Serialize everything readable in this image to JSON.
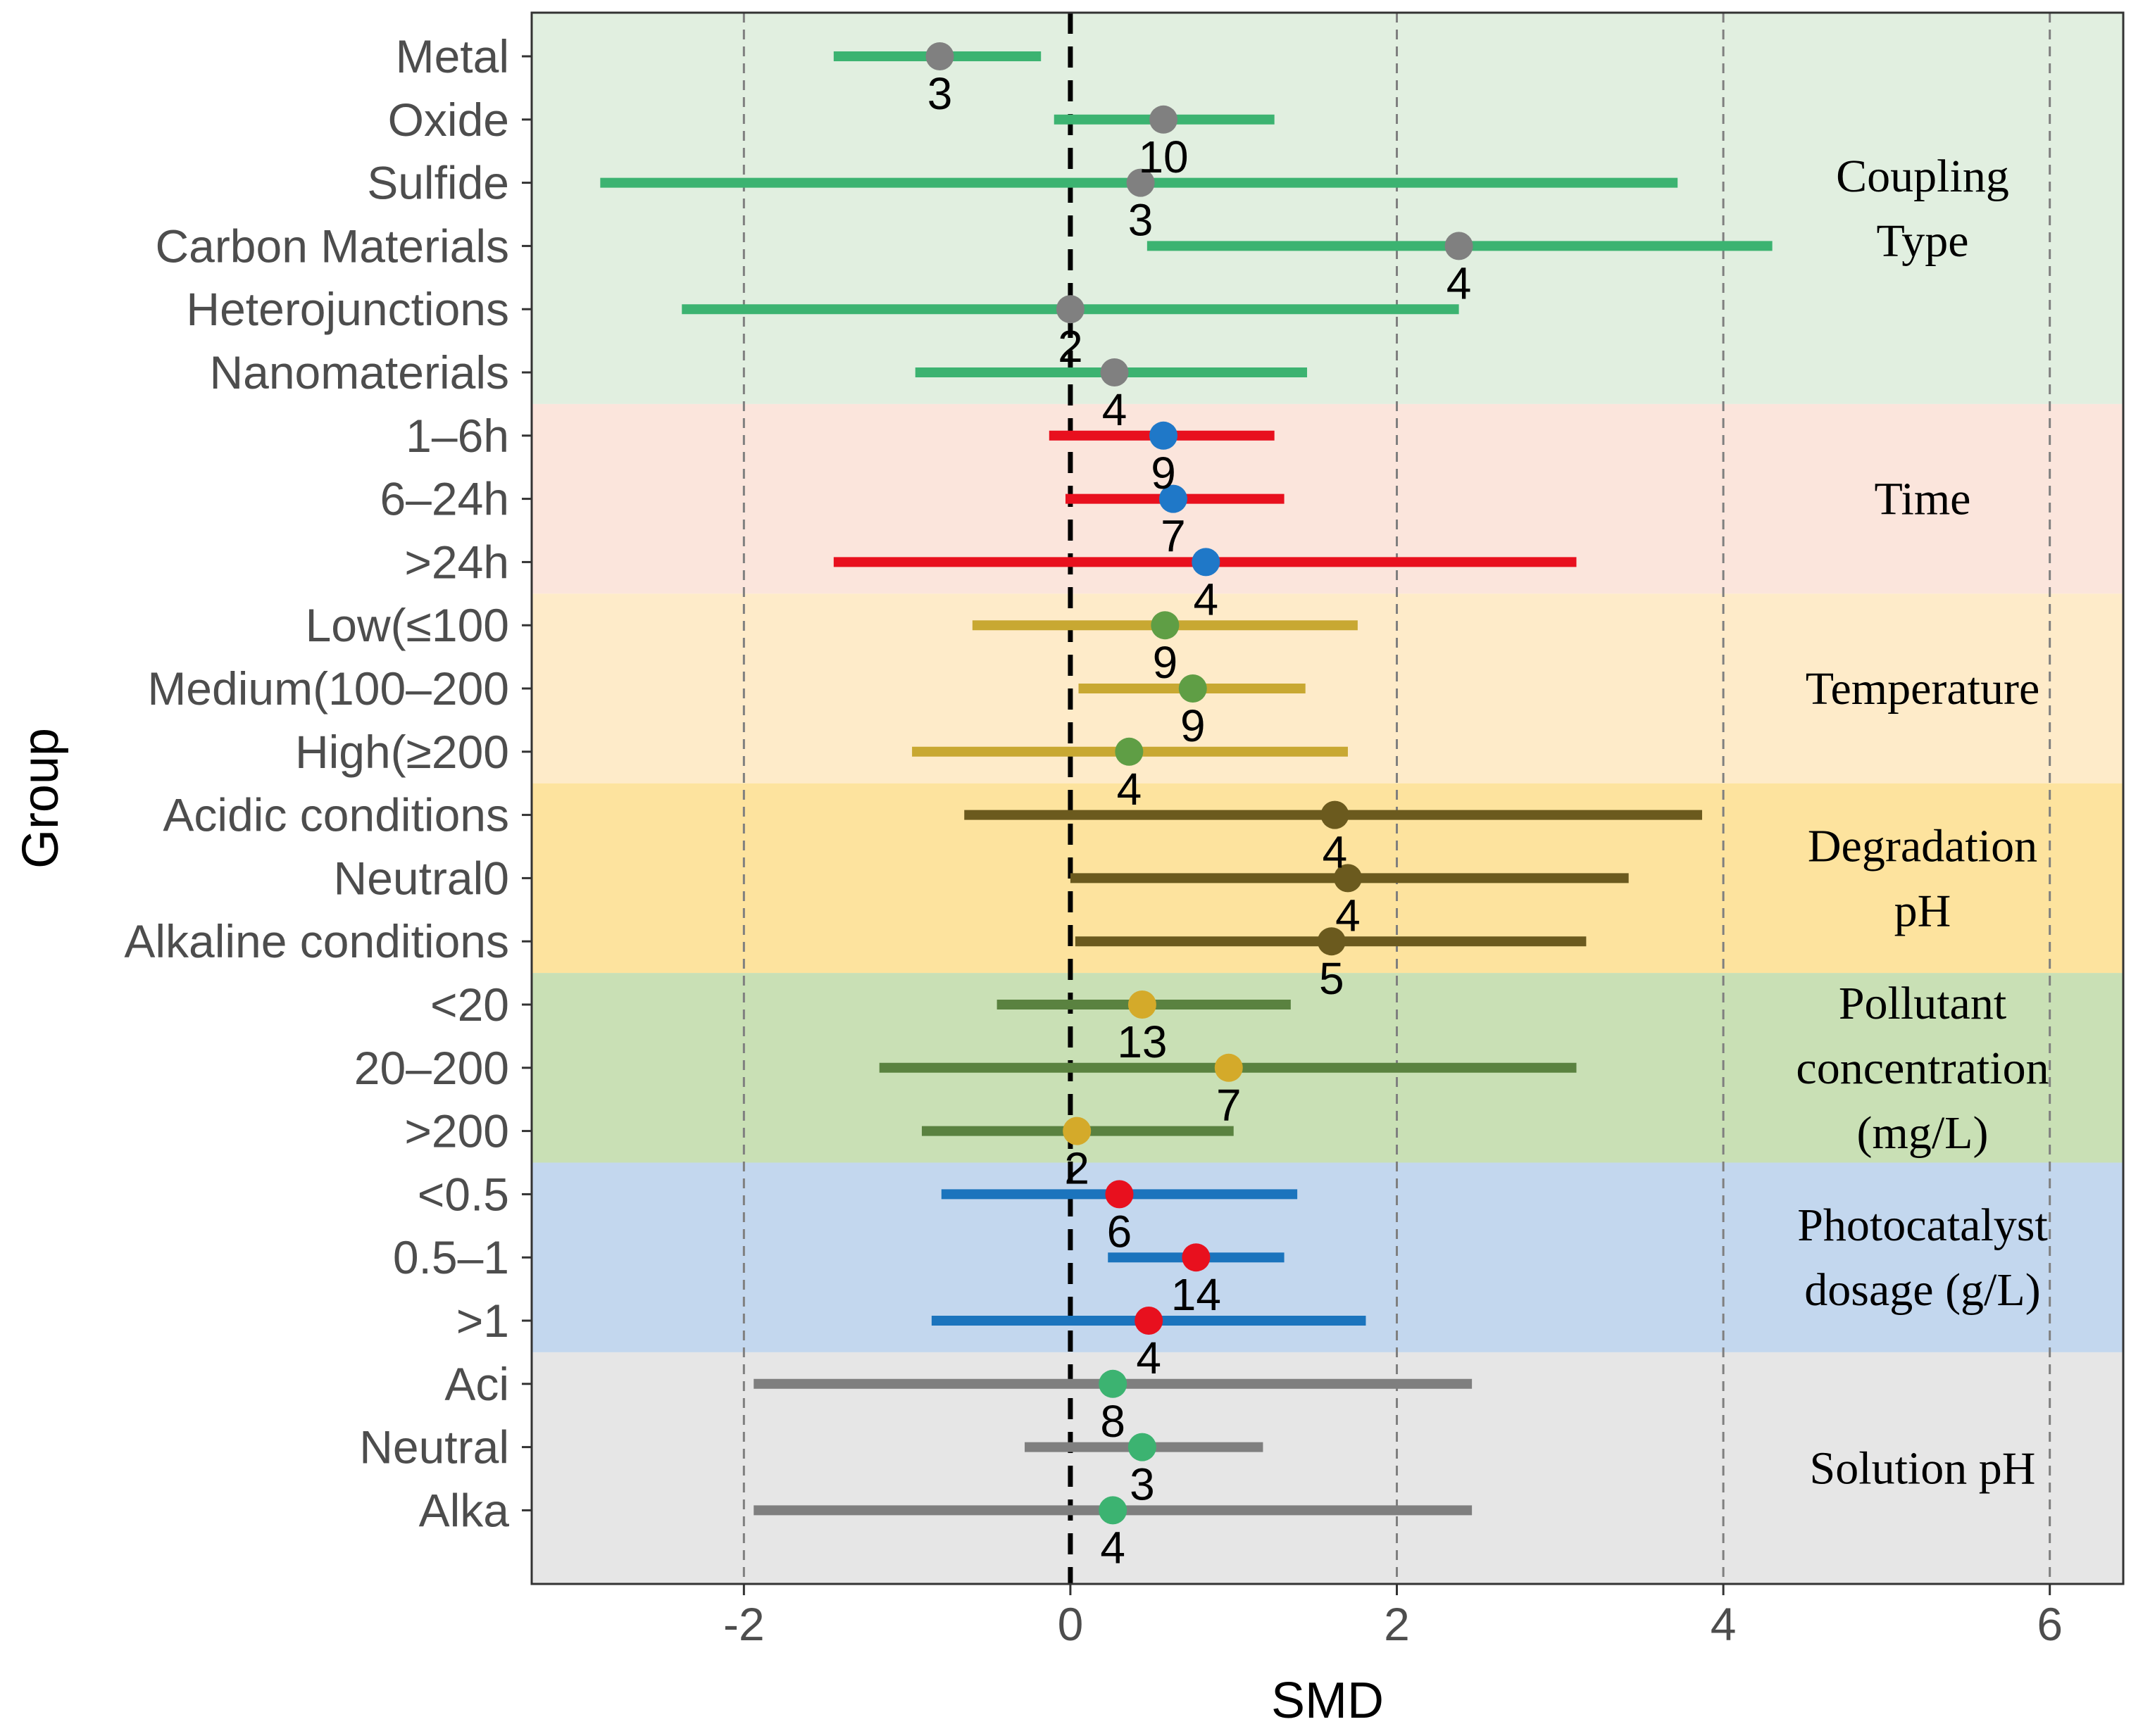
{
  "chart_data": {
    "type": "forest",
    "xlabel": "SMD",
    "ylabel": "Group",
    "xlim": [
      -3.3,
      6.45
    ],
    "x_ticks": [
      -2,
      0,
      2,
      4,
      6
    ],
    "x_tick_labels": [
      "-2",
      "0",
      "2",
      "4",
      "6"
    ],
    "reference_line": 0,
    "grid": "dashed vertical",
    "groups": [
      {
        "name": "Coupling Type",
        "label_lines": [
          "Coupling",
          "Type"
        ],
        "bg": "#e1efe0",
        "line_color": "#3cb371",
        "point_color": "#808080",
        "rows": [
          {
            "label": "Metal",
            "est": -0.8,
            "lo": -1.45,
            "hi": -0.18,
            "n": "3"
          },
          {
            "label": "Oxide",
            "est": 0.57,
            "lo": -0.1,
            "hi": 1.25,
            "n": "10"
          },
          {
            "label": "Sulfide",
            "est": 0.43,
            "lo": -2.88,
            "hi": 3.72,
            "n": "3"
          },
          {
            "label": "Carbon Materials",
            "est": 2.38,
            "lo": 0.47,
            "hi": 4.3,
            "n": "4"
          },
          {
            "label": "Heterojunctions",
            "est": 0.0,
            "lo": -2.38,
            "hi": 2.38,
            "n": "2"
          },
          {
            "label": "Nanomaterials",
            "est": 0.27,
            "lo": -0.95,
            "hi": 1.45,
            "n": "4"
          }
        ]
      },
      {
        "name": "Time",
        "label_lines": [
          "Time"
        ],
        "bg": "#fbe5dc",
        "line_color": "#e8101e",
        "point_color": "#1f78c8",
        "rows": [
          {
            "label": "1–6h",
            "est": 0.57,
            "lo": -0.13,
            "hi": 1.25,
            "n": "9"
          },
          {
            "label": "6–24h",
            "est": 0.63,
            "lo": -0.03,
            "hi": 1.31,
            "n": "7"
          },
          {
            "label": ">24h",
            "est": 0.83,
            "lo": -1.45,
            "hi": 3.1,
            "n": "4"
          }
        ]
      },
      {
        "name": "Temperature",
        "label_lines": [
          "Temperature"
        ],
        "bg": "#feebc9",
        "line_color": "#c8a832",
        "point_color": "#5f9e45",
        "rows": [
          {
            "label": "Low(≤100",
            "est": 0.58,
            "lo": -0.6,
            "hi": 1.76,
            "n": "9"
          },
          {
            "label": "Medium(100–200",
            "est": 0.75,
            "lo": 0.05,
            "hi": 1.44,
            "n": "9"
          },
          {
            "label": "High(≥200",
            "est": 0.36,
            "lo": -0.97,
            "hi": 1.7,
            "n": "4"
          }
        ]
      },
      {
        "name": "Degradation pH",
        "label_lines": [
          "Degradation",
          "pH"
        ],
        "bg": "#fde39e",
        "line_color": "#6b5a1e",
        "point_color": "#6b5a1e",
        "rows": [
          {
            "label": "Acidic conditions",
            "est": 1.62,
            "lo": -0.65,
            "hi": 3.87,
            "n": "4"
          },
          {
            "label": "Neutral0",
            "est": 1.7,
            "lo": 0.0,
            "hi": 3.42,
            "n": "4"
          },
          {
            "label": "Alkaline conditions",
            "est": 1.6,
            "lo": 0.03,
            "hi": 3.16,
            "n": "5"
          }
        ]
      },
      {
        "name": "Pollutant concentration (mg/L)",
        "label_lines": [
          "Pollutant",
          "concentration",
          "(mg/L)"
        ],
        "bg": "#c9e0b5",
        "line_color": "#5a8240",
        "point_color": "#d4aa2a",
        "rows": [
          {
            "label": "<20",
            "est": 0.44,
            "lo": -0.45,
            "hi": 1.35,
            "n": "13"
          },
          {
            "label": "20–200",
            "est": 0.97,
            "lo": -1.17,
            "hi": 3.1,
            "n": "7"
          },
          {
            "label": ">200",
            "est": 0.04,
            "lo": -0.91,
            "hi": 1.0,
            "n": "2"
          }
        ]
      },
      {
        "name": "Photocatalyst dosage (g/L)",
        "label_lines": [
          "Photocatalyst",
          "dosage (g/L)"
        ],
        "bg": "#c3d7ee",
        "line_color": "#1b74bd",
        "point_color": "#e8101e",
        "rows": [
          {
            "label": "<0.5",
            "est": 0.3,
            "lo": -0.79,
            "hi": 1.39,
            "n": "6"
          },
          {
            "label": "0.5–1",
            "est": 0.77,
            "lo": 0.23,
            "hi": 1.31,
            "n": "14"
          },
          {
            "label": ">1",
            "est": 0.48,
            "lo": -0.85,
            "hi": 1.81,
            "n": "4"
          }
        ]
      },
      {
        "name": "Solution pH",
        "label_lines": [
          "Solution pH"
        ],
        "bg": "#e6e6e6",
        "line_color": "#7f7f7f",
        "point_color": "#3cb371",
        "rows": [
          {
            "label": "Aci",
            "est": 0.26,
            "lo": -1.94,
            "hi": 2.46,
            "n": "8"
          },
          {
            "label": "Neutral",
            "est": 0.44,
            "lo": -0.28,
            "hi": 1.18,
            "n": "3"
          },
          {
            "label": "Alka",
            "est": 0.26,
            "lo": -1.94,
            "hi": 2.46,
            "n": "4"
          }
        ]
      }
    ]
  }
}
